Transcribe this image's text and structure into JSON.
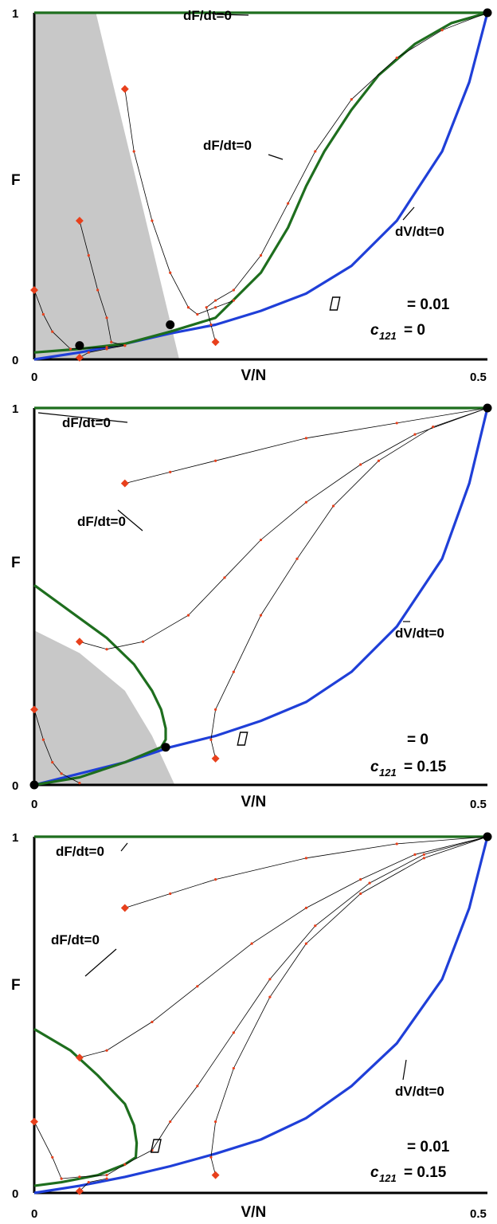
{
  "chart_data": [
    {
      "type": "line",
      "xlabel": "V/N",
      "ylabel": "F",
      "xlim": [
        0,
        0.5
      ],
      "ylim": [
        0,
        1
      ],
      "x_ticks": [
        "0",
        "0.5"
      ],
      "y_ticks": [
        "0",
        "1"
      ],
      "params": {
        "greek_value": "= 0.01",
        "c_label": "c",
        "c_sub": "121",
        "c_value": "= 0"
      },
      "annotations": [
        "dF/dt=0",
        "dF/dt=0",
        "dV/dt=0"
      ],
      "shaded_region": [
        [
          0,
          1
        ],
        [
          0.068,
          1
        ],
        [
          0.16,
          0
        ]
      ],
      "series": [
        {
          "color": "#1f3fd8",
          "points": [
            [
              0,
              0
            ],
            [
              0.05,
              0.02
            ],
            [
              0.1,
              0.045
            ],
            [
              0.15,
              0.075
            ],
            [
              0.2,
              0.1
            ],
            [
              0.25,
              0.14
            ],
            [
              0.3,
              0.19
            ],
            [
              0.35,
              0.27
            ],
            [
              0.4,
              0.4
            ],
            [
              0.45,
              0.6
            ],
            [
              0.48,
              0.8
            ],
            [
              0.5,
              1
            ]
          ]
        },
        {
          "color": "#1e6e1e",
          "points": [
            [
              0,
              0.02
            ],
            [
              0.05,
              0.03
            ],
            [
              0.1,
              0.045
            ],
            [
              0.15,
              0.08
            ],
            [
              0.2,
              0.12
            ],
            [
              0.25,
              0.25
            ],
            [
              0.28,
              0.38
            ],
            [
              0.3,
              0.5
            ],
            [
              0.32,
              0.6
            ],
            [
              0.35,
              0.72
            ],
            [
              0.38,
              0.82
            ],
            [
              0.42,
              0.91
            ],
            [
              0.46,
              0.97
            ],
            [
              0.5,
              1
            ]
          ]
        },
        {
          "color": "#1e6e1e",
          "points": [
            [
              0,
              1
            ],
            [
              0.5,
              1
            ]
          ]
        }
      ],
      "trajectories": [
        [
          [
            0,
            0.2
          ],
          [
            0.01,
            0.13
          ],
          [
            0.02,
            0.08
          ],
          [
            0.04,
            0.03
          ],
          [
            0.08,
            0.035
          ],
          [
            0.1,
            0.04
          ]
        ],
        [
          [
            0.05,
            0.4
          ],
          [
            0.06,
            0.3
          ],
          [
            0.07,
            0.2
          ],
          [
            0.08,
            0.12
          ],
          [
            0.085,
            0.05
          ],
          [
            0.1,
            0.04
          ]
        ],
        [
          [
            0.1,
            0.78
          ],
          [
            0.11,
            0.6
          ],
          [
            0.13,
            0.4
          ],
          [
            0.15,
            0.25
          ],
          [
            0.17,
            0.15
          ],
          [
            0.18,
            0.13
          ],
          [
            0.2,
            0.15
          ],
          [
            0.22,
            0.17
          ]
        ],
        [
          [
            0.2,
            0.05
          ],
          [
            0.195,
            0.1
          ],
          [
            0.19,
            0.15
          ],
          [
            0.2,
            0.17
          ],
          [
            0.22,
            0.2
          ],
          [
            0.25,
            0.3
          ],
          [
            0.28,
            0.45
          ],
          [
            0.31,
            0.6
          ],
          [
            0.35,
            0.75
          ],
          [
            0.4,
            0.87
          ],
          [
            0.45,
            0.95
          ],
          [
            0.5,
            1
          ]
        ],
        [
          [
            0.05,
            0.005
          ],
          [
            0.06,
            0.02
          ],
          [
            0.08,
            0.03
          ],
          [
            0.1,
            0.04
          ]
        ]
      ],
      "fixed_points": [
        [
          0.05,
          0.04
        ],
        [
          0.15,
          0.1
        ],
        [
          0.5,
          1
        ]
      ]
    },
    {
      "type": "line",
      "xlabel": "V/N",
      "ylabel": "F",
      "xlim": [
        0,
        0.5
      ],
      "ylim": [
        0,
        1
      ],
      "x_ticks": [
        "0",
        "0.5"
      ],
      "y_ticks": [
        "0",
        "1"
      ],
      "params": {
        "greek_value": "= 0",
        "c_label": "c",
        "c_sub": "121",
        "c_value": "= 0.15"
      },
      "annotations": [
        "dF/dt=0",
        "dF/dt=0",
        "dV/dt=0"
      ],
      "shaded_region": [
        [
          0,
          0.41
        ],
        [
          0.05,
          0.35
        ],
        [
          0.1,
          0.25
        ],
        [
          0.13,
          0.13
        ],
        [
          0.155,
          0
        ]
      ],
      "series": [
        {
          "color": "#1f3fd8",
          "points": [
            [
              0,
              0
            ],
            [
              0.05,
              0.03
            ],
            [
              0.1,
              0.06
            ],
            [
              0.15,
              0.1
            ],
            [
              0.2,
              0.13
            ],
            [
              0.25,
              0.17
            ],
            [
              0.3,
              0.22
            ],
            [
              0.35,
              0.3
            ],
            [
              0.4,
              0.42
            ],
            [
              0.45,
              0.6
            ],
            [
              0.48,
              0.8
            ],
            [
              0.5,
              1
            ]
          ]
        },
        {
          "color": "#1e6e1e",
          "points": [
            [
              0,
              0.53
            ],
            [
              0.04,
              0.46
            ],
            [
              0.08,
              0.39
            ],
            [
              0.11,
              0.32
            ],
            [
              0.13,
              0.25
            ],
            [
              0.14,
              0.2
            ],
            [
              0.145,
              0.15
            ],
            [
              0.145,
              0.12
            ],
            [
              0.14,
              0.1
            ],
            [
              0.1,
              0.06
            ],
            [
              0.05,
              0.02
            ],
            [
              0,
              0
            ]
          ]
        },
        {
          "color": "#1e6e1e",
          "points": [
            [
              0,
              1
            ],
            [
              0.5,
              1
            ]
          ]
        }
      ],
      "trajectories": [
        [
          [
            0.1,
            0.8
          ],
          [
            0.15,
            0.83
          ],
          [
            0.2,
            0.86
          ],
          [
            0.3,
            0.92
          ],
          [
            0.4,
            0.96
          ],
          [
            0.5,
            1
          ]
        ],
        [
          [
            0.05,
            0.38
          ],
          [
            0.08,
            0.36
          ],
          [
            0.12,
            0.38
          ],
          [
            0.17,
            0.45
          ],
          [
            0.21,
            0.55
          ],
          [
            0.25,
            0.65
          ],
          [
            0.3,
            0.75
          ],
          [
            0.36,
            0.85
          ],
          [
            0.42,
            0.93
          ],
          [
            0.5,
            1
          ]
        ],
        [
          [
            0.2,
            0.07
          ],
          [
            0.195,
            0.12
          ],
          [
            0.2,
            0.2
          ],
          [
            0.22,
            0.3
          ],
          [
            0.25,
            0.45
          ],
          [
            0.29,
            0.6
          ],
          [
            0.33,
            0.74
          ],
          [
            0.38,
            0.86
          ],
          [
            0.44,
            0.95
          ],
          [
            0.5,
            1
          ]
        ],
        [
          [
            0,
            0.2
          ],
          [
            0.01,
            0.12
          ],
          [
            0.02,
            0.06
          ],
          [
            0.03,
            0.03
          ],
          [
            0.05,
            0.005
          ]
        ]
      ],
      "fixed_points": [
        [
          0,
          0
        ],
        [
          0.145,
          0.1
        ],
        [
          0.5,
          1
        ]
      ]
    },
    {
      "type": "line",
      "xlabel": "V/N",
      "ylabel": "F",
      "xlim": [
        0,
        0.5
      ],
      "ylim": [
        0,
        1
      ],
      "x_ticks": [
        "0",
        "0.5"
      ],
      "y_ticks": [
        "0",
        "1"
      ],
      "params": {
        "greek_value": "= 0.01",
        "c_label": "c",
        "c_sub": "121",
        "c_value": "= 0.15"
      },
      "annotations": [
        "dF/dt=0",
        "dF/dt=0",
        "dV/dt=0"
      ],
      "shaded_region": [],
      "series": [
        {
          "color": "#1f3fd8",
          "points": [
            [
              0,
              0
            ],
            [
              0.05,
              0.02
            ],
            [
              0.1,
              0.045
            ],
            [
              0.15,
              0.075
            ],
            [
              0.2,
              0.11
            ],
            [
              0.25,
              0.15
            ],
            [
              0.3,
              0.21
            ],
            [
              0.35,
              0.3
            ],
            [
              0.4,
              0.42
            ],
            [
              0.45,
              0.6
            ],
            [
              0.48,
              0.8
            ],
            [
              0.5,
              1
            ]
          ]
        },
        {
          "color": "#1e6e1e",
          "points": [
            [
              0,
              0.46
            ],
            [
              0.04,
              0.4
            ],
            [
              0.07,
              0.33
            ],
            [
              0.1,
              0.25
            ],
            [
              0.11,
              0.19
            ],
            [
              0.113,
              0.14
            ],
            [
              0.112,
              0.1
            ],
            [
              0.1,
              0.08
            ],
            [
              0.07,
              0.05
            ],
            [
              0.03,
              0.03
            ],
            [
              0,
              0.02
            ]
          ]
        },
        {
          "color": "#1e6e1e",
          "points": [
            [
              0,
              1
            ],
            [
              0.5,
              1
            ]
          ]
        }
      ],
      "trajectories": [
        [
          [
            0.1,
            0.8
          ],
          [
            0.15,
            0.84
          ],
          [
            0.2,
            0.88
          ],
          [
            0.3,
            0.94
          ],
          [
            0.4,
            0.98
          ],
          [
            0.5,
            1
          ]
        ],
        [
          [
            0.05,
            0.38
          ],
          [
            0.08,
            0.4
          ],
          [
            0.13,
            0.48
          ],
          [
            0.18,
            0.58
          ],
          [
            0.24,
            0.7
          ],
          [
            0.3,
            0.8
          ],
          [
            0.36,
            0.88
          ],
          [
            0.42,
            0.95
          ],
          [
            0.5,
            1
          ]
        ],
        [
          [
            0,
            0.2
          ],
          [
            0.02,
            0.1
          ],
          [
            0.03,
            0.04
          ],
          [
            0.05,
            0.045
          ],
          [
            0.08,
            0.05
          ],
          [
            0.1,
            0.08
          ],
          [
            0.13,
            0.12
          ],
          [
            0.15,
            0.2
          ],
          [
            0.18,
            0.3
          ],
          [
            0.22,
            0.45
          ],
          [
            0.26,
            0.6
          ],
          [
            0.31,
            0.75
          ],
          [
            0.37,
            0.87
          ],
          [
            0.43,
            0.95
          ],
          [
            0.5,
            1
          ]
        ],
        [
          [
            0.2,
            0.05
          ],
          [
            0.195,
            0.1
          ],
          [
            0.2,
            0.2
          ],
          [
            0.22,
            0.35
          ],
          [
            0.26,
            0.55
          ],
          [
            0.3,
            0.7
          ],
          [
            0.36,
            0.84
          ],
          [
            0.43,
            0.94
          ],
          [
            0.5,
            1
          ]
        ],
        [
          [
            0.05,
            0.005
          ],
          [
            0.06,
            0.03
          ],
          [
            0.08,
            0.04
          ]
        ]
      ],
      "fixed_points": [
        [
          0.5,
          1
        ]
      ]
    }
  ]
}
